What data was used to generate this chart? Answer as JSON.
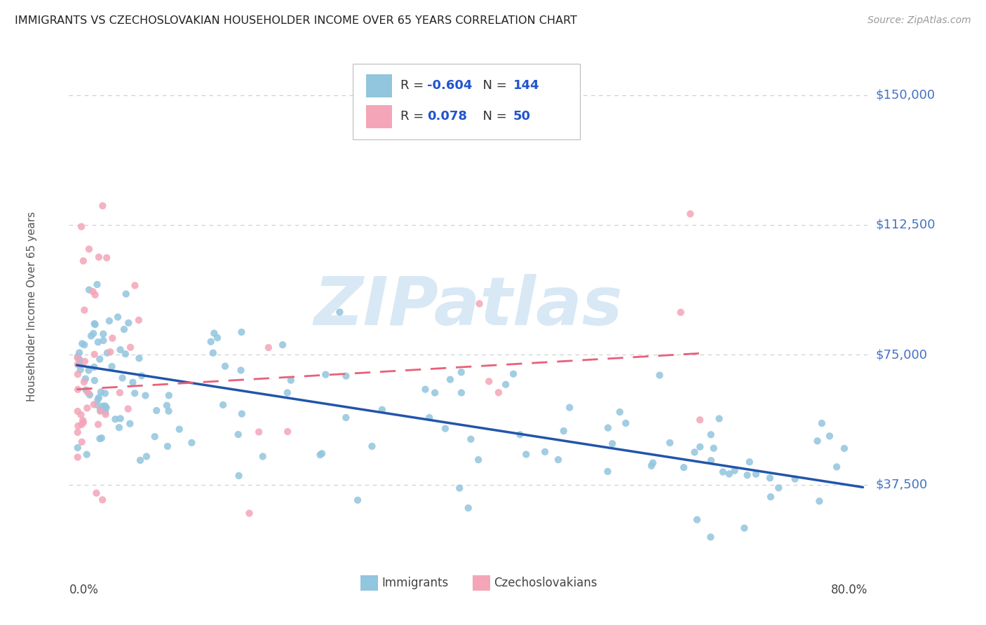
{
  "title": "IMMIGRANTS VS CZECHOSLOVAKIAN HOUSEHOLDER INCOME OVER 65 YEARS CORRELATION CHART",
  "source": "Source: ZipAtlas.com",
  "ylabel": "Householder Income Over 65 years",
  "ytick_labels": [
    "$37,500",
    "$75,000",
    "$112,500",
    "$150,000"
  ],
  "ytick_values": [
    37500,
    75000,
    112500,
    150000
  ],
  "ymin": 15000,
  "ymax": 163000,
  "xmin": -0.008,
  "xmax": 0.825,
  "legend_r_immigrants": "-0.604",
  "legend_n_immigrants": "144",
  "legend_r_czech": "0.078",
  "legend_n_czech": "50",
  "immigrant_color": "#92C5DE",
  "czech_color": "#F4A5B8",
  "immigrant_line_color": "#2255AA",
  "czech_line_color": "#E8607A",
  "background_color": "#FFFFFF",
  "grid_color": "#CCCCCC",
  "watermark_text": "ZIPatlas",
  "watermark_color": "#D8E8F5"
}
